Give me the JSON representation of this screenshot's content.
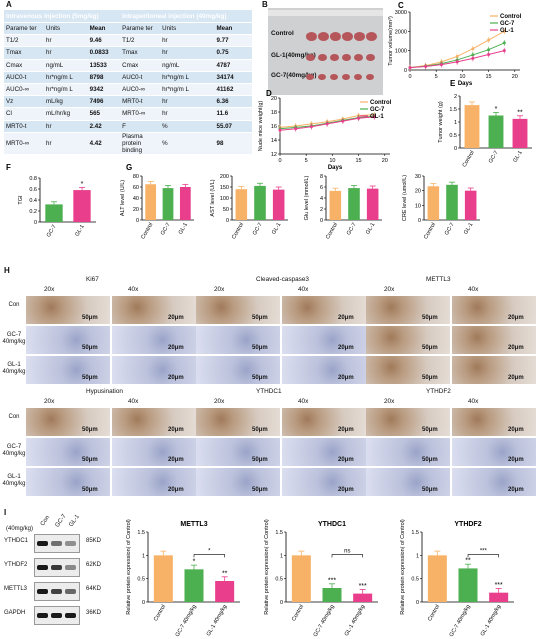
{
  "panel_labels": {
    "a": "A",
    "b": "B",
    "c": "C",
    "d": "D",
    "e": "E",
    "f": "F",
    "g": "G",
    "h": "H",
    "i": "I"
  },
  "pk_table": {
    "header": [
      "Intravenous injection (5mg/kg)",
      "Intraperitoneal injection (40mg/kg)"
    ],
    "rows": [
      [
        "Parame ter",
        "Units",
        "Mean",
        "Parame ter",
        "Units",
        "Mean"
      ],
      [
        "T1/2",
        "hr",
        "9.46",
        "T1/2",
        "hr",
        "9.77"
      ],
      [
        "Tmax",
        "hr",
        "0.0833",
        "Tmax",
        "hr",
        "0.75"
      ],
      [
        "Cmax",
        "ng/mL",
        "13533",
        "Cmax",
        "ng/mL",
        "4787"
      ],
      [
        "AUC0-t",
        "hr*ng/m L",
        "8798",
        "AUC0-t",
        "hr*ng/m L",
        "34174"
      ],
      [
        "AUC0-∞",
        "hr*ng/m L",
        "9342",
        "AUC0-∞",
        "hr*ng/m L",
        "41162"
      ],
      [
        "Vz",
        "mL/kg",
        "7496",
        "MRT0-t",
        "hr",
        "6.36"
      ],
      [
        "Cl",
        "mL/hr/kg",
        "565",
        "MRT0-∞",
        "hr",
        "11.6"
      ],
      [
        "MRT0-t",
        "hr",
        "2.42",
        "F",
        "%",
        "55.07"
      ],
      [
        "MRT0-∞",
        "hr",
        "4.42",
        "Plasma protein binding",
        "%",
        "98"
      ]
    ]
  },
  "photo": {
    "rows": [
      "Control",
      "GL-1(40mg/kg)",
      "GC-7(40mg/kg)"
    ]
  },
  "colors": {
    "control": "#f7b267",
    "gc7": "#4caf50",
    "gl1": "#e83e8c",
    "table_header": "#3a74b9"
  },
  "chart_data": [
    {
      "id": "C",
      "type": "line",
      "ylabel": "Tumor volume(mm³)",
      "xlabel": "Days",
      "x": [
        0,
        3,
        6,
        9,
        12,
        15,
        18
      ],
      "xticks": [
        0,
        5,
        10,
        15,
        20
      ],
      "yticks": [
        0,
        1000,
        2000,
        3000
      ],
      "ylim": [
        0,
        3000
      ],
      "xlim": [
        0,
        21
      ],
      "series": [
        {
          "name": "Control",
          "values": [
            120,
            230,
            420,
            700,
            1100,
            1550,
            2000
          ]
        },
        {
          "name": "GC-7",
          "values": [
            120,
            200,
            330,
            520,
            780,
            1050,
            1400
          ]
        },
        {
          "name": "GL-1",
          "values": [
            120,
            180,
            280,
            420,
            600,
            800,
            1000
          ]
        }
      ]
    },
    {
      "id": "D",
      "type": "line",
      "ylabel": "Nude mice weight(g)",
      "xlabel": "Days",
      "x": [
        0,
        3,
        6,
        9,
        12,
        15,
        18
      ],
      "xticks": [
        0,
        5,
        10,
        15,
        20
      ],
      "yticks": [
        12,
        14,
        16,
        18,
        20
      ],
      "ylim": [
        12,
        20
      ],
      "xlim": [
        0,
        21
      ],
      "series": [
        {
          "name": "Control",
          "values": [
            15.8,
            16.0,
            16.3,
            16.6,
            17.0,
            17.5,
            17.6
          ]
        },
        {
          "name": "GC-7",
          "values": [
            15.6,
            15.8,
            16.0,
            16.4,
            16.8,
            17.2,
            17.4
          ]
        },
        {
          "name": "GL-1",
          "values": [
            15.4,
            15.6,
            15.9,
            16.3,
            16.7,
            17.1,
            17.3
          ]
        }
      ]
    },
    {
      "id": "E",
      "type": "bar",
      "ylabel": "Tumor weight (g)",
      "categories": [
        "Control",
        "GC-7",
        "GL-1"
      ],
      "values": [
        1.65,
        1.25,
        1.12
      ],
      "ylim": [
        0,
        2.0
      ],
      "yticks": [
        0,
        0.5,
        1.0,
        1.5,
        2.0
      ],
      "sig": [
        "",
        "*",
        "**"
      ]
    },
    {
      "id": "F",
      "type": "bar",
      "ylabel": "TGI",
      "categories": [
        "GC-7",
        "GL-1"
      ],
      "values": [
        0.32,
        0.58
      ],
      "ylim": [
        0,
        0.8
      ],
      "yticks": [
        0,
        0.2,
        0.4,
        0.6,
        0.8
      ],
      "sig": [
        "",
        "*"
      ]
    },
    {
      "id": "G1",
      "type": "bar",
      "ylabel": "ALT level (U/L)",
      "categories": [
        "Control",
        "GC-7",
        "GL-1"
      ],
      "values": [
        65,
        58,
        60
      ],
      "ylim": [
        0,
        80
      ],
      "yticks": [
        0,
        20,
        40,
        60,
        80
      ],
      "sig": [
        "",
        "",
        ""
      ]
    },
    {
      "id": "G2",
      "type": "bar",
      "ylabel": "AST level (U/L)",
      "categories": [
        "Control",
        "GC-7",
        "GL-1"
      ],
      "values": [
        140,
        155,
        138
      ],
      "ylim": [
        0,
        200
      ],
      "yticks": [
        0,
        50,
        100,
        150,
        200
      ],
      "sig": [
        "",
        "",
        ""
      ]
    },
    {
      "id": "G3",
      "type": "bar",
      "ylabel": "Glu level (mmol/L)",
      "categories": [
        "Control",
        "GC-7",
        "GL-1"
      ],
      "values": [
        5.3,
        5.8,
        5.7
      ],
      "ylim": [
        0,
        8
      ],
      "yticks": [
        0,
        2,
        4,
        6,
        8
      ],
      "sig": [
        "",
        "",
        ""
      ]
    },
    {
      "id": "G4",
      "type": "bar",
      "ylabel": "CRE level (umol/L)",
      "categories": [
        "Control",
        "GC-7",
        "GL-1"
      ],
      "values": [
        23,
        24,
        20
      ],
      "ylim": [
        0,
        30
      ],
      "yticks": [
        0,
        10,
        20,
        30
      ],
      "sig": [
        "",
        "",
        ""
      ]
    },
    {
      "id": "I1",
      "type": "bar",
      "title": "METTL3",
      "ylabel": "Relative protein expression( of Control)",
      "categories": [
        "Control",
        "GC-7 40mg/kg",
        "GL-1 40mg/kg"
      ],
      "values": [
        1.0,
        0.7,
        0.45
      ],
      "ylim": [
        0,
        1.5
      ],
      "yticks": [
        0,
        0.5,
        1.0,
        1.5
      ],
      "sig": [
        "",
        "*",
        "**"
      ],
      "brackets": [
        {
          "from": 1,
          "to": 2,
          "label": "*"
        }
      ]
    },
    {
      "id": "I2",
      "type": "bar",
      "title": "YTHDC1",
      "ylabel": "Relative protein expression( of Control)",
      "categories": [
        "Control",
        "GC-7 40mg/kg",
        "GL-1 40mg/kg"
      ],
      "values": [
        1.0,
        0.3,
        0.18
      ],
      "ylim": [
        0,
        1.5
      ],
      "yticks": [
        0,
        0.5,
        1.0,
        1.5
      ],
      "sig": [
        "",
        "***",
        "***"
      ],
      "brackets": [
        {
          "from": 1,
          "to": 2,
          "label": "ns"
        }
      ]
    },
    {
      "id": "I3",
      "type": "bar",
      "title": "YTHDF2",
      "ylabel": "Relative protein expression( of Control)",
      "categories": [
        "Control",
        "GC-7 40mg/kg",
        "GL-1 40mg/kg"
      ],
      "values": [
        1.0,
        0.72,
        0.2
      ],
      "ylim": [
        0,
        1.5
      ],
      "yticks": [
        0,
        0.5,
        1.0,
        1.5
      ],
      "sig": [
        "",
        "**",
        "***"
      ],
      "brackets": [
        {
          "from": 1,
          "to": 2,
          "label": "***"
        }
      ]
    }
  ],
  "ihc": {
    "top": [
      "Ki67",
      "Cleaved-caspase3",
      "METTL3"
    ],
    "bottom": [
      "Hypusination",
      "YTHDC1",
      "YTHDF2"
    ],
    "mag": [
      "20x",
      "40x"
    ],
    "rows": [
      "Con",
      "GC-7 40mg/kg",
      "GL-1 40mg/kg"
    ],
    "scale20": "50μm",
    "scale40": "20μm"
  },
  "western": {
    "group_label": "(40mg/kg)",
    "lanes": [
      "Con",
      "GC-7",
      "GL-1"
    ],
    "proteins": [
      {
        "name": "YTHDC1",
        "kd": "85KD",
        "intensity": [
          1.0,
          0.45,
          0.25
        ]
      },
      {
        "name": "YTHDF2",
        "kd": "62KD",
        "intensity": [
          1.0,
          0.8,
          0.3
        ]
      },
      {
        "name": "METTL3",
        "kd": "64KD",
        "intensity": [
          1.0,
          0.75,
          0.5
        ]
      },
      {
        "name": "GAPDH",
        "kd": "36KD",
        "intensity": [
          1.0,
          1.0,
          1.0
        ]
      }
    ]
  }
}
